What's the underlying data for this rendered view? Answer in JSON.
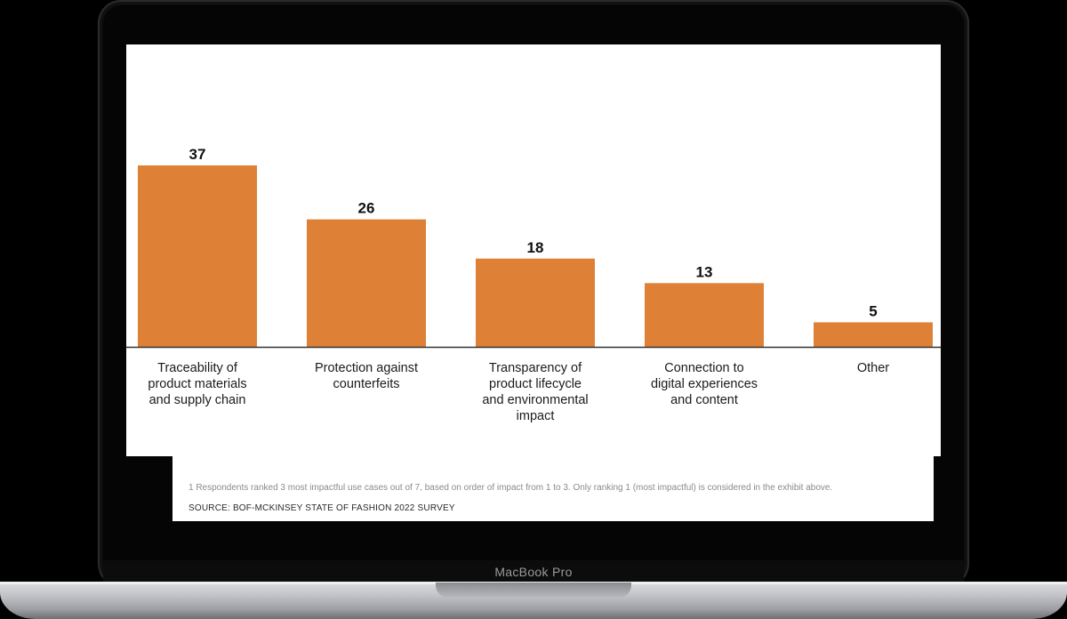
{
  "device": {
    "brand_label": "MacBook Pro"
  },
  "chart_data": {
    "type": "bar",
    "categories": [
      "Traceability of product materials and supply chain",
      "Protection against counterfeits",
      "Transparency of product lifecycle and environmental impact",
      "Connection to digital experiences and content",
      "Other"
    ],
    "category_label_lines": [
      [
        "Traceability of",
        "product materials",
        "and supply chain"
      ],
      [
        "Protection against",
        "counterfeits"
      ],
      [
        "Transparency of",
        "product lifecycle",
        "and environmental",
        "impact"
      ],
      [
        "Connection to",
        "digital experiences",
        "and content"
      ],
      [
        "Other"
      ]
    ],
    "values": [
      37,
      26,
      18,
      13,
      5
    ],
    "data_labels": [
      "37",
      "26",
      "18",
      "13",
      "5"
    ],
    "title": "",
    "xlabel": "",
    "ylabel": "",
    "ylim": [
      0,
      37
    ],
    "grid": false,
    "bar_color": "#DE8136",
    "baseline_color": "#333333"
  },
  "notes": {
    "footnote": "1 Respondents ranked 3 most impactful use cases out of 7, based on order of impact from 1 to 3. Only ranking 1 (most impactful) is considered in the exhibit above.",
    "source": "SOURCE: BOF-MCKINSEY STATE OF FASHION 2022 SURVEY"
  }
}
